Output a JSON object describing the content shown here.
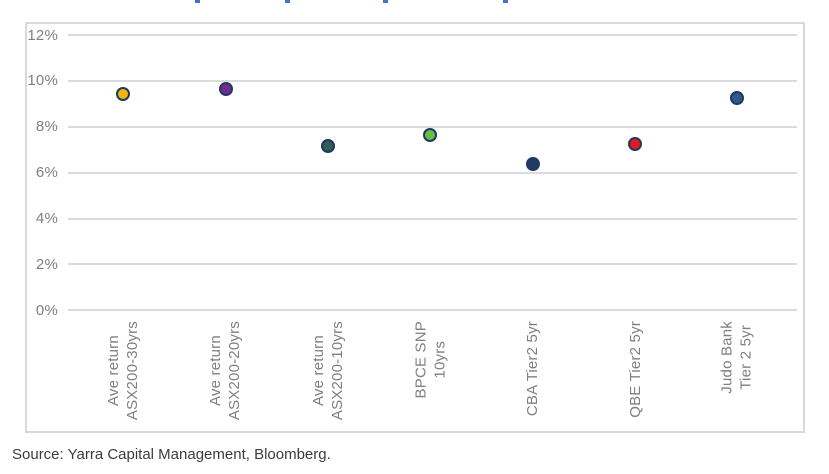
{
  "page": {
    "source_note": "Source: Yarra Capital Management, Bloomberg."
  },
  "chart_data": {
    "type": "scatter",
    "unit": "percent",
    "categories": [
      [
        "Ave return",
        "ASX200-30yrs"
      ],
      [
        "Ave return",
        "ASX200-20yrs"
      ],
      [
        "Ave return",
        "ASX200-10yrs"
      ],
      [
        "BPCE SNP",
        "10yrs"
      ],
      [
        "CBA Tier2 5yr"
      ],
      [
        "QBE Tier2 5yr"
      ],
      [
        "Judo Bank",
        "Tier 2 5yr"
      ]
    ],
    "values": [
      9.45,
      9.65,
      7.15,
      7.65,
      6.4,
      7.25,
      9.25
    ],
    "point_fill_colors": [
      "#F2B50C",
      "#76298E",
      "#2D5F52",
      "#6BBE45",
      "#1F3864",
      "#E01A1F",
      "#2D5A8B"
    ],
    "point_border_color": "#1F3864",
    "ytick_labels": [
      "12%",
      "10%",
      "8%",
      "6%",
      "4%",
      "2%",
      "0%"
    ],
    "ytick_values": [
      12,
      10,
      8,
      6,
      4,
      2,
      0
    ],
    "ylim": [
      0,
      12
    ],
    "grid": "horizontal",
    "legend": "none",
    "xlabel": "",
    "ylabel": ""
  }
}
